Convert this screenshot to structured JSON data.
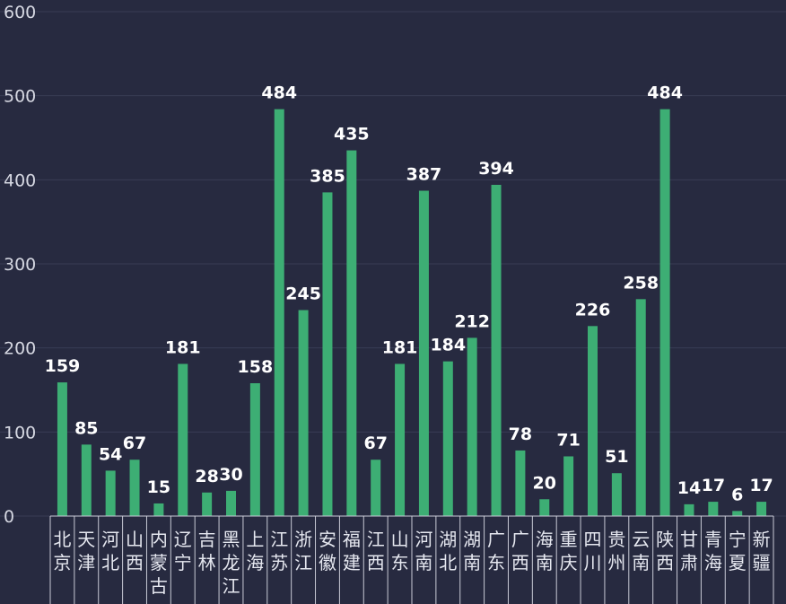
{
  "chart_data": {
    "type": "bar",
    "categories": [
      "北京",
      "天津",
      "河北",
      "山西",
      "内蒙古",
      "辽宁",
      "吉林",
      "黑龙江",
      "上海",
      "江苏",
      "浙江",
      "安徽",
      "福建",
      "江西",
      "山东",
      "河南",
      "湖北",
      "湖南",
      "广东",
      "广西",
      "海南",
      "重庆",
      "四川",
      "贵州",
      "云南",
      "陕西",
      "甘肃",
      "青海",
      "宁夏",
      "新疆"
    ],
    "values": [
      159,
      85,
      54,
      67,
      15,
      181,
      28,
      30,
      158,
      484,
      245,
      385,
      435,
      67,
      181,
      387,
      184,
      212,
      394,
      78,
      20,
      71,
      226,
      51,
      258,
      484,
      14,
      17,
      6,
      17
    ],
    "yticks": [
      0,
      100,
      200,
      300,
      400,
      500,
      600
    ],
    "ylim": [
      0,
      600
    ],
    "grid": true,
    "bar_color": "#3dae74",
    "background": "#272a40",
    "title": "",
    "xlabel": "",
    "ylabel": ""
  }
}
